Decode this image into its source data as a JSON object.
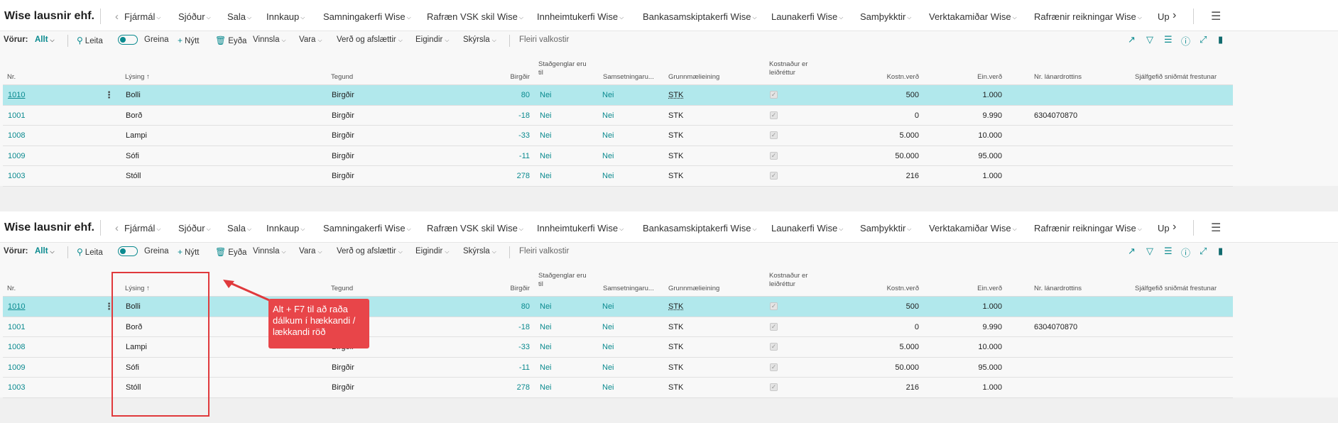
{
  "company": "Wise lausnir ehf.",
  "nav": {
    "items": [
      "Fjármál",
      "Sjóður",
      "Sala",
      "Innkaup",
      "Samningakerfi Wise",
      "Rafræn VSK skil Wise",
      "Innheimtukerfi Wise",
      "Bankasamskiptakerfi Wise",
      "Launakerfi Wise",
      "Samþykktir",
      "Verktakamiðar Wise",
      "Rafrænir reikningar Wise"
    ],
    "more": "Up"
  },
  "actions": {
    "label": "Vörur:",
    "filter": "Allt",
    "search": "Leita",
    "analyze": "Greina",
    "new": "Nýtt",
    "delete": "Eyða",
    "process": "Vinnsla",
    "item": "Vara",
    "prices": "Verð og afslættir",
    "properties": "Eigindir",
    "report": "Skýrsla",
    "more_options": "Fleiri valkostir"
  },
  "columns": {
    "no": "Nr.",
    "description": "Lýsing",
    "sort_indicator": "↑",
    "type": "Tegund",
    "inventory": "Birgðir",
    "substitutes_1": "Staðgenglar eru",
    "substitutes_2": "til",
    "assembly": "Samsetningaru...",
    "base_unit": "Grunnmælieining",
    "cost_adjusted_1": "Kostnaður er",
    "cost_adjusted_2": "leiðréttur",
    "unit_cost": "Kostn.verð",
    "unit_price": "Ein.verð",
    "vendor_no": "Nr. lánardrottins",
    "default_deferral": "Sjálfgefið sniðmát frestunar"
  },
  "rows": [
    {
      "no": "1010",
      "description": "Bolli",
      "type": "Birgðir",
      "inventory": "80",
      "substitutes": "Nei",
      "assembly": "Nei",
      "unit": "STK",
      "unit_cost": "500",
      "unit_price": "1.000",
      "vendor_no": ""
    },
    {
      "no": "1001",
      "description": "Borð",
      "type": "Birgðir",
      "inventory": "-18",
      "substitutes": "Nei",
      "assembly": "Nei",
      "unit": "STK",
      "unit_cost": "0",
      "unit_price": "9.990",
      "vendor_no": "6304070870"
    },
    {
      "no": "1008",
      "description": "Lampi",
      "type": "Birgðir",
      "inventory": "-33",
      "substitutes": "Nei",
      "assembly": "Nei",
      "unit": "STK",
      "unit_cost": "5.000",
      "unit_price": "10.000",
      "vendor_no": ""
    },
    {
      "no": "1009",
      "description": "Sófi",
      "type": "Birgðir",
      "inventory": "-11",
      "substitutes": "Nei",
      "assembly": "Nei",
      "unit": "STK",
      "unit_cost": "50.000",
      "unit_price": "95.000",
      "vendor_no": ""
    },
    {
      "no": "1003",
      "description": "Stóll",
      "type": "Birgðir",
      "inventory": "278",
      "substitutes": "Nei",
      "assembly": "Nei",
      "unit": "STK",
      "unit_cost": "216",
      "unit_price": "1.000",
      "vendor_no": ""
    }
  ],
  "annotation": {
    "text": "Alt + F7 til að raða dálkum í hækkandi / lækkandi röð",
    "color": "#e84549"
  },
  "colors": {
    "accent": "#0a8a8f",
    "selected_row": "#b1e8ec"
  }
}
